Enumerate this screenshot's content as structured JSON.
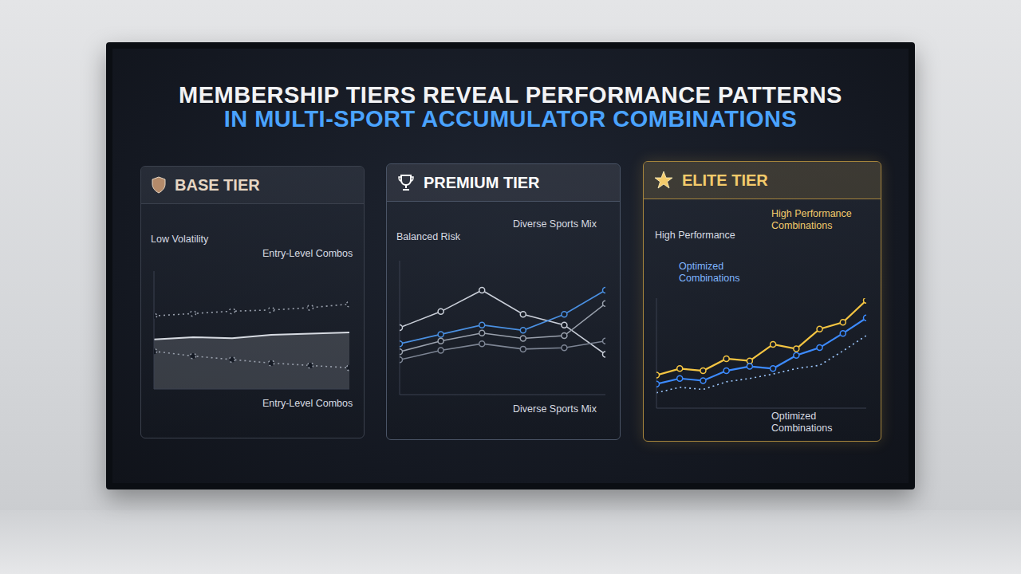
{
  "title": "MEMBERSHIP TIERS REVEAL PERFORMANCE PATTERNS",
  "subtitle": "IN MULTI-SPORT ACCUMULATOR COMBINATIONS",
  "chart_data": [
    {
      "type": "line",
      "title": "BASE TIER",
      "annotations": [
        "Low Volatility",
        "Entry-Level Combos",
        "Entry-Level Combos"
      ],
      "x": [
        0,
        1,
        2,
        3,
        4,
        5
      ],
      "xlim": [
        0,
        5
      ],
      "ylim": [
        0,
        100
      ],
      "tick_labels": false,
      "grid": false,
      "series": [
        {
          "color": "#9aa1ad",
          "values": [
            62,
            64,
            66,
            67,
            69,
            72
          ],
          "line_style": "dotted",
          "marker": "circle"
        },
        {
          "type": "area",
          "color": "#d7dbe2",
          "values": [
            42,
            44,
            43,
            46,
            47,
            48
          ],
          "line_style": "solid",
          "marker": "none"
        },
        {
          "color": "#9aa1ad",
          "values": [
            32,
            28,
            25,
            22,
            20,
            18
          ],
          "line_style": "dotted",
          "marker": "circle"
        }
      ]
    },
    {
      "type": "line",
      "title": "PREMIUM TIER",
      "annotations": [
        "Balanced Risk",
        "Diverse Sports Mix",
        "Diverse Sports Mix"
      ],
      "x": [
        0,
        1,
        2,
        3,
        4,
        5
      ],
      "xlim": [
        0,
        5
      ],
      "ylim": [
        0,
        100
      ],
      "tick_labels": false,
      "grid": false,
      "series": [
        {
          "color": "#c9ced8",
          "values": [
            50,
            62,
            78,
            60,
            52,
            30
          ],
          "line_style": "solid",
          "marker": "circle"
        },
        {
          "color": "#4a90e2",
          "values": [
            38,
            45,
            52,
            48,
            60,
            78
          ],
          "line_style": "solid",
          "marker": "circle"
        },
        {
          "color": "#9aa1ad",
          "values": [
            32,
            40,
            46,
            42,
            44,
            68
          ],
          "line_style": "solid",
          "marker": "circle"
        },
        {
          "color": "#7d8594",
          "values": [
            26,
            33,
            38,
            34,
            35,
            40
          ],
          "line_style": "solid",
          "marker": "circle"
        }
      ]
    },
    {
      "type": "line",
      "title": "ELITE TIER",
      "annotations": [
        "High Performance",
        "High Performance Combinations",
        "Optimized Combinations",
        "Optimized Combinations"
      ],
      "x": [
        0,
        1,
        2,
        3,
        4,
        5,
        6,
        7,
        8,
        9
      ],
      "xlim": [
        0,
        9
      ],
      "ylim": [
        0,
        100
      ],
      "tick_labels": false,
      "grid": false,
      "series": [
        {
          "color": "#f5c542",
          "values": [
            30,
            36,
            34,
            45,
            43,
            58,
            54,
            72,
            78,
            98
          ],
          "line_style": "solid",
          "marker": "circle"
        },
        {
          "color": "#3d8bff",
          "values": [
            22,
            27,
            25,
            34,
            38,
            36,
            48,
            55,
            68,
            82
          ],
          "line_style": "solid",
          "marker": "circle"
        },
        {
          "color": "#9ec9ff",
          "values": [
            14,
            19,
            17,
            24,
            27,
            31,
            36,
            39,
            52,
            66
          ],
          "line_style": "dotted",
          "marker": "none"
        }
      ]
    }
  ]
}
